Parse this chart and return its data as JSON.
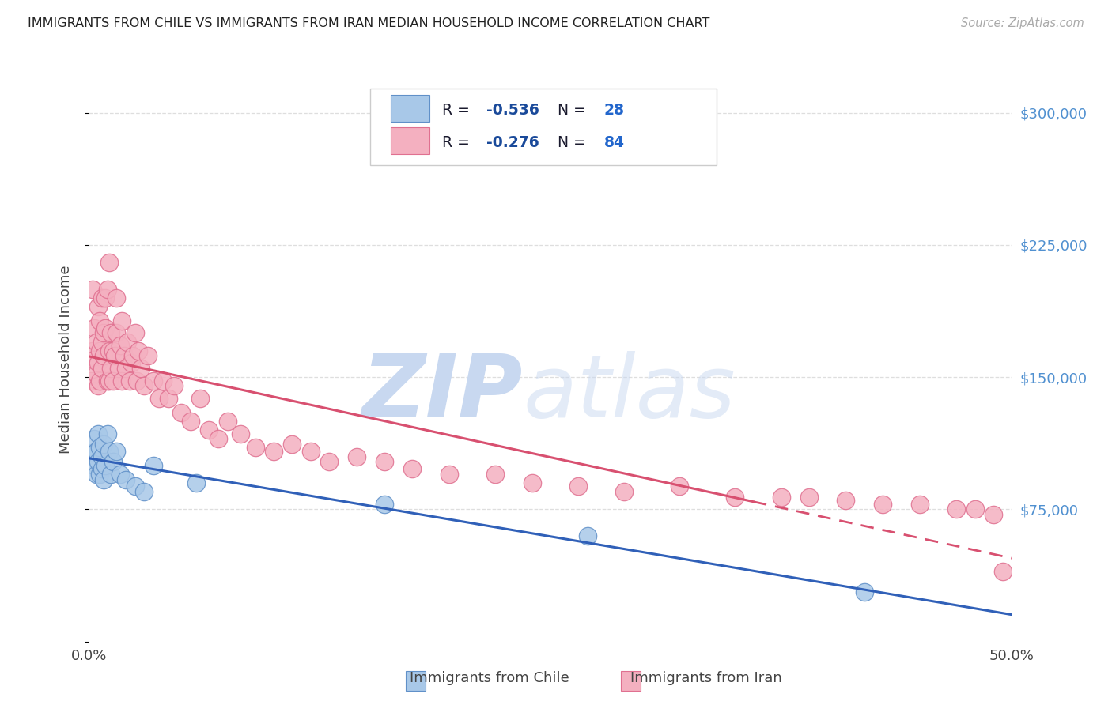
{
  "title": "IMMIGRANTS FROM CHILE VS IMMIGRANTS FROM IRAN MEDIAN HOUSEHOLD INCOME CORRELATION CHART",
  "source": "Source: ZipAtlas.com",
  "ylabel": "Median Household Income",
  "xlim": [
    0.0,
    0.5
  ],
  "ylim": [
    0,
    320000
  ],
  "yticks": [
    0,
    75000,
    150000,
    225000,
    300000
  ],
  "ytick_labels": [
    "",
    "$75,000",
    "$150,000",
    "$225,000",
    "$300,000"
  ],
  "chile_color": "#a8c8e8",
  "iran_color": "#f4b0c0",
  "chile_edge_color": "#6090c8",
  "iran_edge_color": "#e07090",
  "chile_line_color": "#3060b8",
  "iran_line_color": "#d85070",
  "yright_color": "#5090d0",
  "watermark_zip_color": "#c8d8f0",
  "watermark_atlas_color": "#c8d8f0",
  "title_color": "#222222",
  "source_color": "#aaaaaa",
  "grid_color": "#dedede",
  "background_color": "#ffffff",
  "legend_text_color": "#1a4a9a",
  "legend_R_color": "#1a4a9a",
  "legend_N_color": "#2266cc",
  "chile_R": "R = -0.536",
  "chile_N": "N = 28",
  "iran_R": "R = -0.276",
  "iran_N": "N = 84",
  "chile_scatter_x": [
    0.002,
    0.003,
    0.003,
    0.004,
    0.004,
    0.005,
    0.005,
    0.006,
    0.006,
    0.007,
    0.007,
    0.008,
    0.008,
    0.009,
    0.01,
    0.011,
    0.012,
    0.013,
    0.015,
    0.017,
    0.02,
    0.025,
    0.03,
    0.035,
    0.058,
    0.16,
    0.27,
    0.42
  ],
  "chile_scatter_y": [
    107000,
    100000,
    115000,
    108000,
    95000,
    102000,
    118000,
    110000,
    95000,
    105000,
    98000,
    112000,
    92000,
    100000,
    118000,
    108000,
    95000,
    102000,
    108000,
    95000,
    92000,
    88000,
    85000,
    100000,
    90000,
    78000,
    60000,
    28000
  ],
  "iran_scatter_x": [
    0.001,
    0.002,
    0.002,
    0.003,
    0.003,
    0.004,
    0.004,
    0.005,
    0.005,
    0.005,
    0.006,
    0.006,
    0.006,
    0.007,
    0.007,
    0.007,
    0.008,
    0.008,
    0.009,
    0.009,
    0.01,
    0.01,
    0.011,
    0.011,
    0.011,
    0.012,
    0.012,
    0.013,
    0.013,
    0.014,
    0.015,
    0.015,
    0.016,
    0.017,
    0.018,
    0.018,
    0.019,
    0.02,
    0.021,
    0.022,
    0.023,
    0.024,
    0.025,
    0.026,
    0.027,
    0.028,
    0.03,
    0.032,
    0.035,
    0.038,
    0.04,
    0.043,
    0.046,
    0.05,
    0.055,
    0.06,
    0.065,
    0.07,
    0.075,
    0.082,
    0.09,
    0.1,
    0.11,
    0.12,
    0.13,
    0.145,
    0.16,
    0.175,
    0.195,
    0.22,
    0.24,
    0.265,
    0.29,
    0.32,
    0.35,
    0.375,
    0.39,
    0.41,
    0.43,
    0.45,
    0.47,
    0.48,
    0.49,
    0.495
  ],
  "iran_scatter_y": [
    148000,
    165000,
    200000,
    160000,
    178000,
    152000,
    170000,
    158000,
    145000,
    190000,
    165000,
    182000,
    148000,
    170000,
    155000,
    195000,
    175000,
    162000,
    195000,
    178000,
    200000,
    148000,
    165000,
    215000,
    148000,
    175000,
    155000,
    165000,
    148000,
    162000,
    175000,
    195000,
    155000,
    168000,
    148000,
    182000,
    162000,
    155000,
    170000,
    148000,
    158000,
    162000,
    175000,
    148000,
    165000,
    155000,
    145000,
    162000,
    148000,
    138000,
    148000,
    138000,
    145000,
    130000,
    125000,
    138000,
    120000,
    115000,
    125000,
    118000,
    110000,
    108000,
    112000,
    108000,
    102000,
    105000,
    102000,
    98000,
    95000,
    95000,
    90000,
    88000,
    85000,
    88000,
    82000,
    82000,
    82000,
    80000,
    78000,
    78000,
    75000,
    75000,
    72000,
    40000
  ]
}
